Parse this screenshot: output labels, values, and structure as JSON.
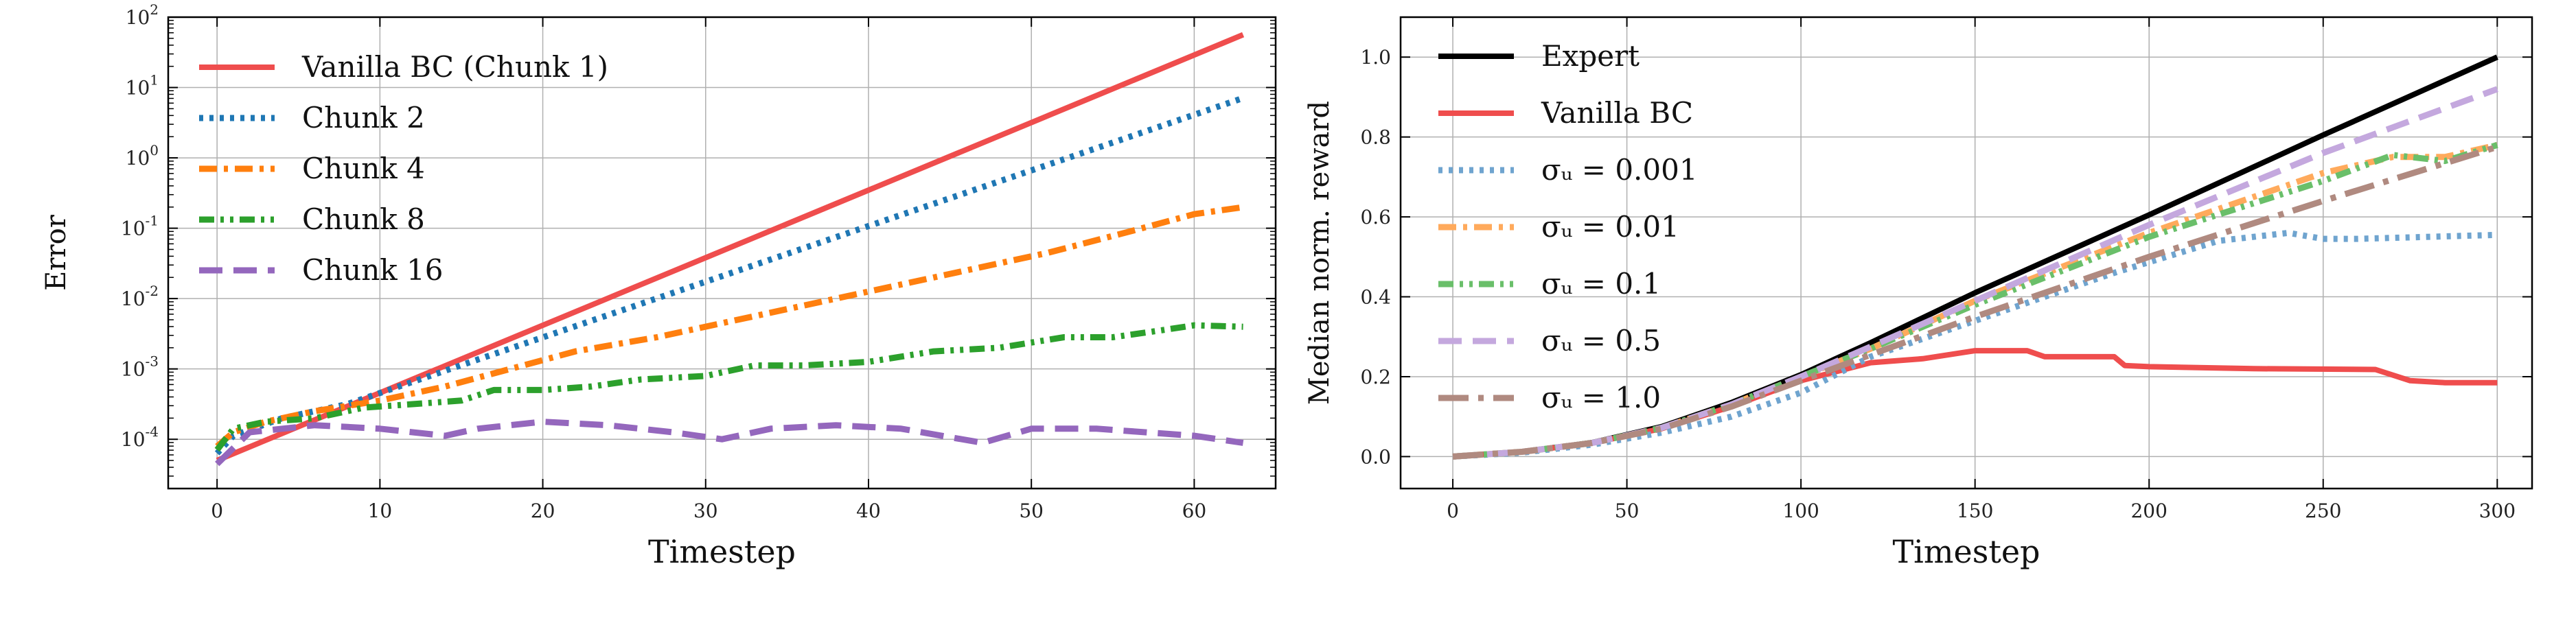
{
  "figure": "Two-panel line chart",
  "chart_data": [
    {
      "type": "line",
      "title": "",
      "xlabel": "Timestep",
      "ylabel": "Error",
      "yscale": "log",
      "xlim": [
        -3,
        65
      ],
      "ylim_log10": [
        -4.7,
        2
      ],
      "xticks": [
        0,
        10,
        20,
        30,
        40,
        50,
        60
      ],
      "yticks": [
        "10^-4",
        "10^-3",
        "10^-2",
        "10^-1",
        "10^0",
        "10^1",
        "10^2"
      ],
      "legend_location": "upper-left",
      "grid": true,
      "series": [
        {
          "name": "Vanilla BC (Chunk 1)",
          "color": "#ef4d4d",
          "style": "solid",
          "x": [
            0,
            63
          ],
          "y_log10": [
            -4.3,
            1.75
          ]
        },
        {
          "name": "Chunk 2",
          "color": "#1f77b4",
          "style": "dotted",
          "x": [
            0,
            1,
            4,
            8,
            63
          ],
          "y_log10": [
            -4.2,
            -3.95,
            -3.7,
            -3.5,
            0.85
          ]
        },
        {
          "name": "Chunk 4",
          "color": "#ff7f0e",
          "style": "dashdot",
          "x": [
            0,
            1,
            3,
            6,
            10,
            14,
            18,
            22,
            27,
            31,
            36,
            41,
            46,
            51,
            56,
            60,
            63
          ],
          "y_log10": [
            -4.1,
            -3.9,
            -3.75,
            -3.6,
            -3.45,
            -3.25,
            -3.0,
            -2.75,
            -2.55,
            -2.35,
            -2.1,
            -1.85,
            -1.6,
            -1.35,
            -1.05,
            -0.8,
            -0.7
          ]
        },
        {
          "name": "Chunk 8",
          "color": "#2ca02c",
          "style": "dashdotdot",
          "x": [
            0,
            1,
            3,
            6,
            9,
            12,
            15,
            17,
            20,
            23,
            26,
            30,
            33,
            36,
            40,
            44,
            48,
            52,
            55,
            58,
            60,
            63
          ],
          "y_log10": [
            -4.15,
            -3.85,
            -3.75,
            -3.7,
            -3.55,
            -3.5,
            -3.45,
            -3.3,
            -3.3,
            -3.25,
            -3.15,
            -3.1,
            -2.95,
            -2.95,
            -2.9,
            -2.75,
            -2.7,
            -2.55,
            -2.55,
            -2.45,
            -2.38,
            -2.4
          ]
        },
        {
          "name": "Chunk 16",
          "color": "#9467bd",
          "style": "dashed",
          "x": [
            0,
            2,
            6,
            10,
            14,
            16,
            20,
            24,
            28,
            31,
            34,
            38,
            42,
            47,
            50,
            54,
            57,
            60,
            63
          ],
          "y_log10": [
            -4.35,
            -3.9,
            -3.8,
            -3.85,
            -3.95,
            -3.85,
            -3.75,
            -3.8,
            -3.9,
            -4.0,
            -3.85,
            -3.8,
            -3.85,
            -4.05,
            -3.85,
            -3.85,
            -3.9,
            -3.95,
            -4.05
          ]
        }
      ]
    },
    {
      "type": "line",
      "title": "",
      "xlabel": "Timestep",
      "ylabel": "Median norm. reward",
      "xlim": [
        -15,
        310
      ],
      "ylim": [
        -0.08,
        1.1
      ],
      "xticks": [
        0,
        50,
        100,
        150,
        200,
        250,
        300
      ],
      "yticks": [
        "0.0",
        "0.2",
        "0.4",
        "0.6",
        "0.8",
        "1.0"
      ],
      "legend_location": "upper-left",
      "grid": true,
      "series": [
        {
          "name": "Expert",
          "color": "#000000",
          "style": "solid",
          "x": [
            0,
            20,
            40,
            60,
            80,
            100,
            120,
            150,
            200,
            250,
            300
          ],
          "y": [
            0,
            0.012,
            0.035,
            0.075,
            0.135,
            0.205,
            0.285,
            0.41,
            0.605,
            0.805,
            1.0
          ]
        },
        {
          "name": "Vanilla BC",
          "color": "#ef4d4d",
          "style": "solid",
          "x": [
            0,
            20,
            40,
            60,
            80,
            100,
            120,
            135,
            150,
            165,
            170,
            180,
            190,
            193,
            200,
            230,
            265,
            275,
            285,
            300
          ],
          "y": [
            0,
            0.012,
            0.034,
            0.07,
            0.125,
            0.19,
            0.235,
            0.245,
            0.265,
            0.265,
            0.25,
            0.25,
            0.25,
            0.228,
            0.225,
            0.22,
            0.218,
            0.19,
            0.185,
            0.185
          ]
        },
        {
          "name": "σᵤ = 0.001",
          "color": "#6fa4cf",
          "style": "dotted",
          "x": [
            0,
            20,
            40,
            60,
            80,
            100,
            120,
            150,
            190,
            220,
            240,
            250,
            260,
            300
          ],
          "y": [
            0,
            0.01,
            0.03,
            0.06,
            0.1,
            0.16,
            0.25,
            0.34,
            0.46,
            0.54,
            0.56,
            0.545,
            0.545,
            0.555
          ]
        },
        {
          "name": "σᵤ = 0.01",
          "color": "#ffaa5c",
          "style": "dashdot",
          "x": [
            0,
            20,
            40,
            60,
            80,
            100,
            120,
            150,
            200,
            250,
            270,
            285,
            300
          ],
          "y": [
            0,
            0.012,
            0.034,
            0.072,
            0.13,
            0.2,
            0.27,
            0.39,
            0.56,
            0.71,
            0.75,
            0.75,
            0.78
          ]
        },
        {
          "name": "σᵤ = 0.1",
          "color": "#6abf6a",
          "style": "dashdotdot",
          "x": [
            0,
            20,
            40,
            60,
            80,
            100,
            120,
            150,
            200,
            250,
            270,
            285,
            300
          ],
          "y": [
            0,
            0.012,
            0.034,
            0.072,
            0.13,
            0.2,
            0.27,
            0.38,
            0.55,
            0.69,
            0.755,
            0.74,
            0.78
          ]
        },
        {
          "name": "σᵤ = 0.5",
          "color": "#c4a8de",
          "style": "dashed",
          "x": [
            0,
            20,
            40,
            60,
            80,
            100,
            120,
            150,
            200,
            250,
            300
          ],
          "y": [
            0,
            0.012,
            0.034,
            0.072,
            0.13,
            0.2,
            0.275,
            0.39,
            0.58,
            0.76,
            0.92
          ]
        },
        {
          "name": "σᵤ = 1.0",
          "color": "#b08a80",
          "style": "longdashdot",
          "x": [
            0,
            20,
            40,
            60,
            80,
            100,
            120,
            150,
            200,
            250,
            300
          ],
          "y": [
            0,
            0.012,
            0.034,
            0.07,
            0.125,
            0.19,
            0.255,
            0.35,
            0.5,
            0.64,
            0.775
          ]
        }
      ]
    }
  ]
}
